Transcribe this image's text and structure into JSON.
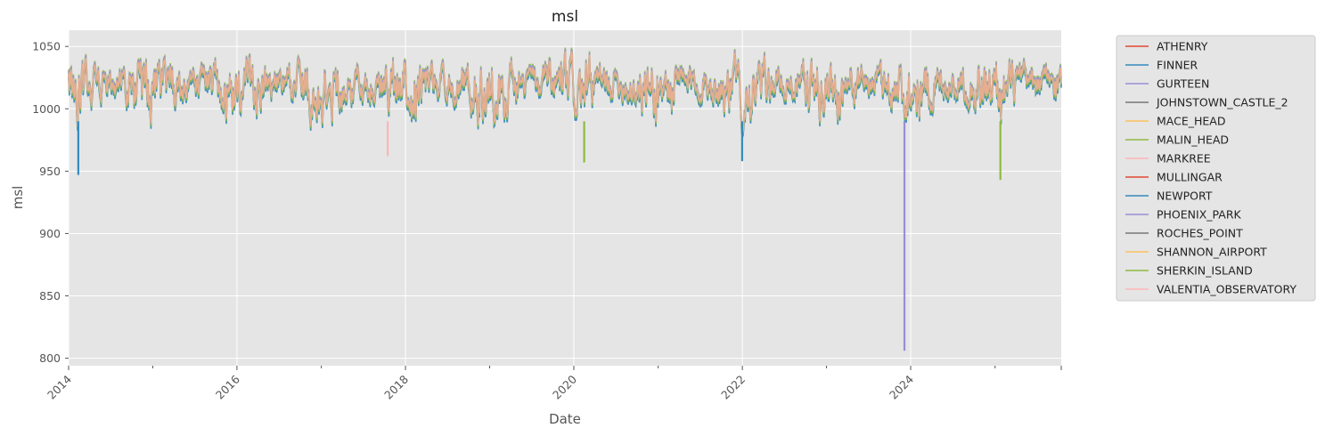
{
  "chart_data": {
    "type": "line",
    "title": "msl",
    "xlabel": "Date",
    "ylabel": "msl",
    "xlim": [
      "2014-01-01",
      "2025-10-15"
    ],
    "ylim": [
      794,
      1063
    ],
    "x_ticks": [
      "2014",
      "2016",
      "2018",
      "2020",
      "2022",
      "2024"
    ],
    "x_tick_values": [
      "2014-01-01",
      "2016-01-01",
      "2018-01-01",
      "2020-01-01",
      "2022-01-01",
      "2024-01-01"
    ],
    "y_ticks": [
      800,
      850,
      900,
      950,
      1000,
      1050
    ],
    "grid": true,
    "legend_position": "outside-right",
    "series": [
      {
        "name": "ATHENRY",
        "color": "#E24A33"
      },
      {
        "name": "FINNER",
        "color": "#348ABD"
      },
      {
        "name": "GURTEEN",
        "color": "#988ED5"
      },
      {
        "name": "JOHNSTOWN_CASTLE_2",
        "color": "#777777"
      },
      {
        "name": "MACE_HEAD",
        "color": "#FBC15E"
      },
      {
        "name": "MALIN_HEAD",
        "color": "#8EBA42"
      },
      {
        "name": "MARKREE",
        "color": "#FFB5B8"
      },
      {
        "name": "MULLINGAR",
        "color": "#E24A33"
      },
      {
        "name": "NEWPORT",
        "color": "#348ABD"
      },
      {
        "name": "PHOENIX_PARK",
        "color": "#988ED5"
      },
      {
        "name": "ROCHES_POINT",
        "color": "#777777"
      },
      {
        "name": "SHANNON_AIRPORT",
        "color": "#FBC15E"
      },
      {
        "name": "SHERKIN_ISLAND",
        "color": "#8EBA42"
      },
      {
        "name": "VALENTIA_OBSERVATORY",
        "color": "#FFB5B8"
      }
    ],
    "notable_points": [
      {
        "series": "PHOENIX_PARK",
        "x": "2023-12-05",
        "y": 806
      },
      {
        "series": "FINNER",
        "x": "2014-02-12",
        "y": 947
      },
      {
        "series": "SHERKIN_ISLAND",
        "x": "2025-01-24",
        "y": 943
      },
      {
        "series": "MARKREE",
        "x": "2017-10-16",
        "y": 962
      },
      {
        "series": "MALIN_HEAD",
        "x": "2020-02-15",
        "y": 957
      },
      {
        "series": "FINNER",
        "x": "2021-12-31",
        "y": 958
      }
    ],
    "composite_color": "#E5AE8F"
  }
}
